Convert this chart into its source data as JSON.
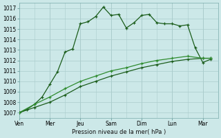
{
  "background_color": "#cce8e8",
  "grid_color": "#aacccc",
  "line_color1": "#1a5c1a",
  "line_color2": "#1a5c1a",
  "line_color3": "#2d8b2d",
  "ylabel": "Pression niveau de la mer( hPa )",
  "ylim": [
    1006.5,
    1017.5
  ],
  "yticks": [
    1007,
    1008,
    1009,
    1010,
    1011,
    1012,
    1013,
    1014,
    1015,
    1016,
    1017
  ],
  "xtick_labels": [
    "Ven",
    "Mer",
    "Jeu",
    "Sam",
    "Dim",
    "Lun",
    "Mar"
  ],
  "xtick_positions": [
    0,
    2,
    4,
    6,
    8,
    10,
    12
  ],
  "series1_x": [
    0,
    0.5,
    1,
    1.5,
    2,
    2.5,
    3,
    3.5,
    4,
    4.5,
    5,
    5.5,
    6,
    6.5,
    7,
    7.5,
    8,
    8.5,
    9,
    9.5,
    10,
    10.5,
    11,
    11.5,
    12,
    12.5
  ],
  "series1_y": [
    1007.0,
    1007.3,
    1007.8,
    1008.5,
    1009.7,
    1010.9,
    1012.8,
    1013.1,
    1015.5,
    1015.7,
    1016.2,
    1017.1,
    1016.3,
    1016.4,
    1015.1,
    1015.6,
    1016.3,
    1016.4,
    1015.6,
    1015.5,
    1015.5,
    1015.3,
    1015.4,
    1013.2,
    1011.8,
    1012.1
  ],
  "series2_x": [
    0,
    1,
    2,
    3,
    4,
    5,
    6,
    7,
    8,
    9,
    10,
    11,
    12,
    12.5
  ],
  "series2_y": [
    1007.0,
    1007.5,
    1008.0,
    1008.7,
    1009.5,
    1010.0,
    1010.5,
    1010.9,
    1011.3,
    1011.6,
    1011.9,
    1012.1,
    1012.2,
    1012.2
  ],
  "series3_x": [
    0,
    1,
    2,
    3,
    4,
    5,
    6,
    7,
    8,
    9,
    10,
    11,
    12,
    12.5
  ],
  "series3_y": [
    1007.0,
    1007.8,
    1008.5,
    1009.3,
    1010.0,
    1010.5,
    1011.0,
    1011.3,
    1011.7,
    1012.0,
    1012.2,
    1012.4,
    1012.2,
    1012.2
  ],
  "xlim": [
    0,
    13.0
  ],
  "marker_size": 3.5,
  "linewidth": 0.9
}
